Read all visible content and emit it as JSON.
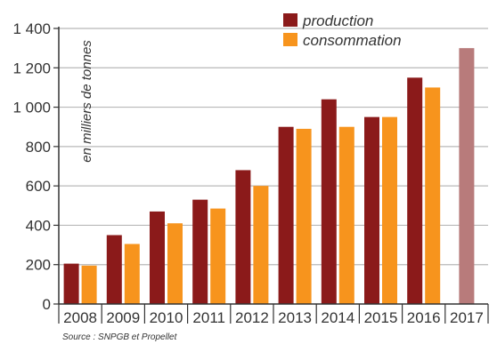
{
  "chart_data": {
    "type": "bar",
    "categories": [
      "2008",
      "2009",
      "2010",
      "2011",
      "2012",
      "2013",
      "2014",
      "2015",
      "2016",
      "2017"
    ],
    "series": [
      {
        "name": "production",
        "color": "#8b1a1a",
        "values": [
          205,
          350,
          470,
          530,
          680,
          900,
          1040,
          950,
          1150,
          null
        ]
      },
      {
        "name": "consommation",
        "color": "#f7941d",
        "values": [
          195,
          305,
          410,
          485,
          600,
          890,
          900,
          950,
          1100,
          null
        ]
      }
    ],
    "highlight": {
      "category": "2017",
      "value": 1300,
      "color": "#b87b7b"
    },
    "ylabel": "en milliers de tonnes",
    "yticks": [
      0,
      200,
      400,
      600,
      800,
      1000,
      1200,
      1400
    ],
    "ytick_labels": [
      "0",
      "200",
      "400",
      "600",
      "800",
      "1 000",
      "1 200",
      "1 400"
    ],
    "ylim": [
      0,
      1400
    ],
    "grid": true,
    "legend_position": "top-right",
    "source": "Source : SNPGB et Propellet"
  }
}
